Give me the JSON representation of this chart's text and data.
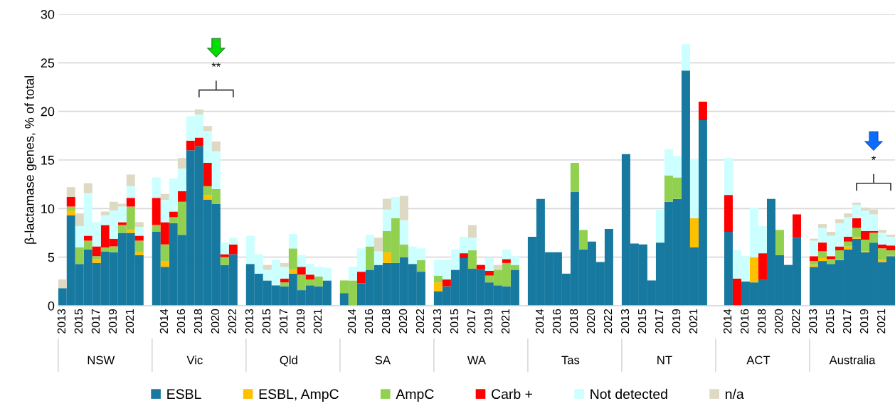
{
  "chart_data": {
    "type": "bar",
    "stacked": true,
    "ylabel": "β-lactamase genes, % of total",
    "categories": [
      "2013",
      null,
      "2015",
      null,
      "2017",
      null,
      "2019",
      null,
      "2021",
      null,
      null,
      "2014",
      null,
      "2016",
      null,
      "2018",
      null,
      "2020",
      null,
      "2022",
      "2013",
      null,
      "2015",
      null,
      "2017",
      null,
      "2019",
      null,
      "2021",
      null,
      null,
      "2014",
      null,
      "2016",
      null,
      "2018",
      null,
      "2020",
      null,
      "2022",
      "2013",
      null,
      "2015",
      null,
      "2017",
      null,
      "2019",
      null,
      "2021",
      null,
      null,
      "2014",
      null,
      "2016",
      null,
      "2018",
      null,
      "2020",
      null,
      "2022",
      "2013",
      null,
      "2015",
      null,
      "2017",
      null,
      "2019",
      null,
      "2021",
      null,
      null,
      "2014",
      null,
      "2016",
      null,
      "2018",
      null,
      "2020",
      null,
      "2022",
      "2013",
      null,
      "2015",
      null,
      "2017",
      null,
      "2019",
      null,
      "2021",
      null
    ],
    "series": [
      {
        "name": "ESBL",
        "color": "#17799f",
        "values": [
          1.8,
          9.3,
          4.3,
          5.8,
          4.4,
          5.6,
          5.5,
          7.5,
          7.5,
          5.2,
          7.6,
          4.0,
          8.5,
          7.3,
          16.0,
          16.4,
          10.9,
          10.5,
          4.2,
          5.3,
          4.3,
          3.3,
          2.6,
          2.1,
          2.0,
          3.3,
          1.6,
          2.1,
          2.0,
          2.6,
          1.3,
          null,
          2.3,
          3.7,
          4.2,
          4.4,
          4.4,
          5.0,
          4.3,
          3.5,
          1.5,
          2.0,
          3.7,
          4.9,
          3.8,
          3.7,
          2.4,
          2.1,
          2.0,
          3.7,
          7.1,
          11.0,
          5.5,
          5.5,
          3.3,
          11.7,
          5.8,
          6.6,
          4.5,
          7.9,
          15.6,
          6.4,
          6.3,
          2.6,
          6.5,
          10.7,
          11.0,
          24.2,
          6.0,
          19.1,
          null,
          7.6,
          null,
          2.5,
          2.4,
          2.7,
          11.0,
          5.2,
          4.2,
          7.0,
          4.0,
          4.6,
          4.3,
          4.7,
          5.8,
          6.9,
          5.5,
          6.5,
          4.5,
          5.1
        ]
      },
      {
        "name": "ESBL, AmpC",
        "color": "#ffc000",
        "values": [
          null,
          0.5,
          null,
          null,
          0.4,
          null,
          null,
          null,
          0.3,
          0.3,
          null,
          0.6,
          null,
          null,
          null,
          null,
          0.5,
          null,
          null,
          null,
          null,
          null,
          null,
          null,
          null,
          0.4,
          null,
          null,
          null,
          null,
          null,
          null,
          null,
          null,
          null,
          1.1,
          null,
          null,
          null,
          null,
          0.9,
          null,
          null,
          null,
          null,
          null,
          null,
          null,
          null,
          null,
          null,
          null,
          null,
          null,
          null,
          null,
          null,
          null,
          null,
          null,
          null,
          null,
          null,
          null,
          null,
          null,
          null,
          null,
          3.0,
          null,
          null,
          null,
          null,
          null,
          2.6,
          null,
          null,
          null,
          null,
          null,
          0.2,
          0.3,
          null,
          null,
          0.3,
          0.2,
          0.1,
          null,
          0.2,
          0.1
        ]
      },
      {
        "name": "AmpC",
        "color": "#92d050",
        "values": [
          null,
          0.4,
          1.7,
          0.9,
          0.3,
          0.4,
          0.6,
          0.8,
          2.4,
          1.2,
          0.7,
          1.7,
          0.6,
          3.4,
          null,
          null,
          0.9,
          1.5,
          0.8,
          null,
          null,
          null,
          null,
          null,
          0.4,
          2.2,
          1.6,
          0.6,
          1.0,
          null,
          1.3,
          2.6,
          null,
          2.4,
          null,
          2.2,
          4.6,
          1.3,
          null,
          1.2,
          0.7,
          null,
          null,
          null,
          1.9,
          null,
          0.7,
          1.6,
          2.4,
          0.5,
          null,
          null,
          null,
          null,
          null,
          3.0,
          2.0,
          null,
          null,
          null,
          null,
          null,
          null,
          null,
          null,
          2.7,
          2.2,
          null,
          null,
          null,
          null,
          null,
          null,
          null,
          null,
          null,
          null,
          2.6,
          null,
          null,
          0.4,
          0.7,
          0.5,
          1.0,
          0.5,
          0.9,
          1.2,
          1.0,
          1.2,
          0.5
        ]
      },
      {
        "name": "Carb +",
        "color": "#ff0000",
        "values": [
          null,
          1.0,
          null,
          0.5,
          1.0,
          2.3,
          0.8,
          0.3,
          0.9,
          0.5,
          2.8,
          2.3,
          0.6,
          1.1,
          1.0,
          0.9,
          2.4,
          null,
          0.3,
          1.0,
          null,
          null,
          null,
          null,
          0.4,
          null,
          0.8,
          0.5,
          null,
          null,
          null,
          null,
          1.2,
          null,
          null,
          null,
          null,
          null,
          null,
          null,
          null,
          0.7,
          null,
          0.5,
          null,
          0.5,
          0.5,
          null,
          0.4,
          null,
          null,
          null,
          null,
          null,
          null,
          null,
          null,
          null,
          null,
          null,
          null,
          null,
          null,
          null,
          null,
          null,
          null,
          null,
          null,
          1.9,
          null,
          3.8,
          2.8,
          null,
          null,
          2.7,
          null,
          null,
          null,
          2.4,
          0.5,
          0.9,
          0.3,
          0.4,
          0.5,
          1.0,
          0.9,
          0.2,
          0.4,
          0.5
        ]
      },
      {
        "name": "Not detected",
        "color": "#ccffff",
        "values": [
          null,
          null,
          2.2,
          4.4,
          2.5,
          1.0,
          2.9,
          1.6,
          1.2,
          0.9,
          2.1,
          2.3,
          3.4,
          2.3,
          2.5,
          2.4,
          3.3,
          3.9,
          1.2,
          0.7,
          2.9,
          2.0,
          1.1,
          2.6,
          1.2,
          1.5,
          1.2,
          1.1,
          1.0,
          1.3,
          null,
          1.4,
          2.4,
          1.2,
          1.4,
          2.2,
          2.2,
          2.5,
          1.8,
          1.2,
          1.6,
          2.0,
          2.1,
          1.7,
          1.3,
          null,
          1.3,
          null,
          1.0,
          0.9,
          null,
          null,
          null,
          null,
          null,
          null,
          null,
          null,
          null,
          null,
          null,
          null,
          null,
          null,
          3.4,
          2.7,
          2.2,
          2.7,
          6.1,
          null,
          null,
          3.8,
          2.9,
          2.6,
          5.1,
          2.8,
          null,
          null,
          null,
          null,
          1.6,
          1.5,
          2.1,
          2.4,
          2.0,
          1.4,
          2.1,
          1.7,
          1.2,
          0.9
        ]
      },
      {
        "name": "n/a",
        "color": "#ddd9c3",
        "values": [
          0.9,
          1.0,
          1.3,
          1.0,
          null,
          0.4,
          0.9,
          0.3,
          1.2,
          0.5,
          null,
          0.6,
          null,
          1.1,
          null,
          0.5,
          0.5,
          1.0,
          null,
          null,
          null,
          null,
          0.5,
          null,
          0.4,
          null,
          null,
          null,
          null,
          null,
          null,
          null,
          null,
          null,
          1.4,
          1.1,
          null,
          2.5,
          null,
          null,
          null,
          null,
          null,
          null,
          1.3,
          null,
          null,
          0.5,
          null,
          null,
          null,
          null,
          null,
          null,
          null,
          null,
          null,
          null,
          null,
          null,
          null,
          null,
          null,
          null,
          null,
          null,
          null,
          null,
          null,
          null,
          null,
          null,
          null,
          null,
          null,
          null,
          null,
          null,
          null,
          null,
          0.2,
          0.4,
          0.4,
          0.4,
          0.4,
          0.2,
          0.3,
          0.5,
          0.3,
          0.2
        ]
      }
    ],
    "ylim": [
      0,
      30
    ],
    "yticks": [
      0,
      5,
      10,
      15,
      20,
      25,
      30
    ],
    "grid": "y",
    "legend": "bottom",
    "annotations": [
      "NSW",
      "Vic",
      "Qld",
      "SA",
      "WA",
      "Tas",
      "NT",
      "ACT",
      "Australia",
      "**",
      "*"
    ]
  }
}
